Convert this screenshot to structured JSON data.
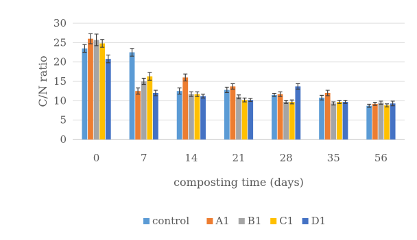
{
  "chart_data": {
    "type": "bar",
    "title": "",
    "xlabel": "composting time (days)",
    "ylabel": "C/N ratio",
    "categories": [
      "0",
      "7",
      "14",
      "21",
      "28",
      "35",
      "56"
    ],
    "ylim": [
      0,
      30
    ],
    "yticks": [
      0,
      5,
      10,
      15,
      20,
      25,
      30
    ],
    "grid": true,
    "legend_position": "bottom",
    "error_bars": true,
    "series": [
      {
        "name": "control",
        "color": "#5B9BD5",
        "values": [
          23.5,
          22.5,
          12.5,
          12.8,
          11.5,
          10.8,
          8.7
        ],
        "errors": [
          1.0,
          1.0,
          0.8,
          0.7,
          0.4,
          0.6,
          0.4
        ]
      },
      {
        "name": "A1",
        "color": "#ED7D31",
        "values": [
          26.0,
          12.5,
          16.0,
          13.7,
          11.7,
          12.0,
          9.2
        ],
        "errors": [
          1.3,
          0.8,
          0.9,
          0.7,
          0.6,
          0.7,
          0.4
        ]
      },
      {
        "name": "B1",
        "color": "#A5A5A5",
        "values": [
          25.7,
          15.0,
          11.7,
          11.0,
          9.7,
          9.3,
          9.5
        ],
        "errors": [
          1.5,
          0.8,
          0.6,
          0.5,
          0.4,
          0.4,
          0.4
        ]
      },
      {
        "name": "C1",
        "color": "#FFC000",
        "values": [
          24.8,
          16.3,
          11.7,
          10.2,
          9.7,
          9.7,
          8.8
        ],
        "errors": [
          1.0,
          1.0,
          0.6,
          0.5,
          0.5,
          0.4,
          0.4
        ]
      },
      {
        "name": "D1",
        "color": "#4472C4",
        "values": [
          20.8,
          12.0,
          11.2,
          10.2,
          13.7,
          9.7,
          9.3
        ],
        "errors": [
          1.0,
          0.7,
          0.5,
          0.4,
          0.7,
          0.4,
          0.6
        ]
      }
    ]
  }
}
